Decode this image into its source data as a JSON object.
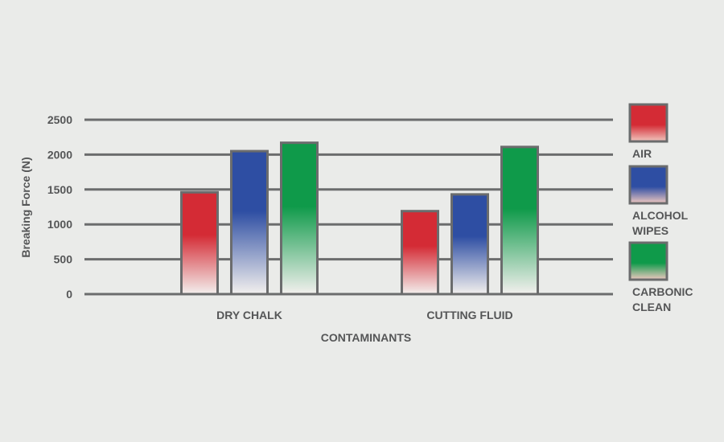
{
  "chart_data": {
    "type": "bar",
    "xlabel": "CONTAMINANTS",
    "ylabel": "Breaking Force (N)",
    "ylim": [
      0,
      2500
    ],
    "yticks": [
      0,
      500,
      1000,
      1500,
      2000,
      2500
    ],
    "categories": [
      "DRY CHALK",
      "CUTTING FLUID"
    ],
    "series": [
      {
        "name": "AIR",
        "legend_lines": [
          "AIR"
        ],
        "color": "#d42b35",
        "values": [
          1460,
          1190
        ]
      },
      {
        "name": "ALCOHOL WIPES",
        "legend_lines": [
          "ALCOHOL",
          "WIPES"
        ],
        "color": "#2e4ea3",
        "values": [
          2050,
          1430
        ]
      },
      {
        "name": "CARBONIC CLEAN",
        "legend_lines": [
          "CARBONIC",
          "CLEAN"
        ],
        "color": "#0f9a4a",
        "values": [
          2170,
          2110
        ]
      }
    ],
    "grid": true,
    "legend_position": "right"
  }
}
